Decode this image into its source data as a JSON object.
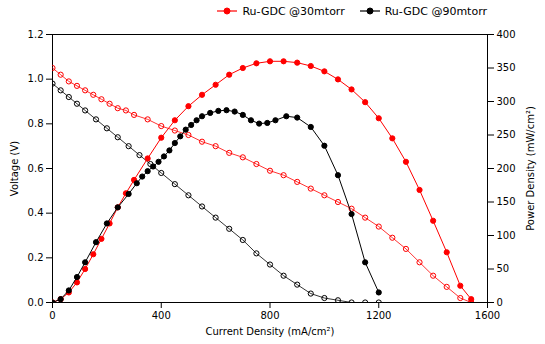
{
  "chart_data": {
    "type": "line",
    "title": "",
    "xlabel": "Current Density (mA/cm²)",
    "ylabel": "Voltage (V)",
    "y2label": "Power Density (mW/cm²)",
    "xlim": [
      0,
      1600
    ],
    "xticks": [
      0,
      400,
      800,
      1200,
      1600
    ],
    "ylim": [
      0,
      1.2
    ],
    "yticks": [
      {
        "value": 0,
        "label": "0.0"
      },
      0.2,
      0.4,
      0.6,
      0.8,
      {
        "value": 1,
        "label": "1.0"
      },
      1.2
    ],
    "y2lim": [
      0,
      400
    ],
    "y2ticks": [
      0,
      50,
      100,
      150,
      200,
      250,
      300,
      350,
      400
    ],
    "grid": false,
    "legend": "upper right",
    "series": [
      {
        "color": "red",
        "marker": "open_circle",
        "axis": "y",
        "x": [
          0,
          30,
          60,
          90,
          120,
          150,
          180,
          210,
          240,
          270,
          300,
          350,
          400,
          450,
          500,
          550,
          600,
          650,
          700,
          750,
          800,
          850,
          900,
          950,
          1000,
          1050,
          1100,
          1150,
          1200,
          1250,
          1300,
          1350,
          1400,
          1450,
          1500,
          1540
        ],
        "values": [
          1.05,
          1.02,
          0.99,
          0.97,
          0.95,
          0.93,
          0.91,
          0.89,
          0.87,
          0.86,
          0.84,
          0.82,
          0.79,
          0.77,
          0.75,
          0.72,
          0.7,
          0.67,
          0.65,
          0.62,
          0.59,
          0.57,
          0.54,
          0.51,
          0.48,
          0.45,
          0.42,
          0.38,
          0.34,
          0.29,
          0.24,
          0.18,
          0.12,
          0.07,
          0.02,
          0.0
        ]
      },
      {
        "color": "black",
        "marker": "open_circle",
        "axis": "y",
        "x": [
          0,
          30,
          60,
          90,
          120,
          160,
          200,
          240,
          280,
          320,
          360,
          400,
          450,
          500,
          550,
          600,
          650,
          700,
          750,
          800,
          850,
          900,
          950,
          1000,
          1050,
          1100,
          1150,
          1200
        ],
        "values": [
          0.98,
          0.95,
          0.92,
          0.89,
          0.86,
          0.82,
          0.78,
          0.74,
          0.7,
          0.66,
          0.62,
          0.58,
          0.53,
          0.48,
          0.43,
          0.38,
          0.33,
          0.28,
          0.22,
          0.17,
          0.12,
          0.08,
          0.04,
          0.02,
          0.01,
          0.0,
          0.0,
          0.0
        ]
      },
      {
        "name": "Ru-GDC @30mtorr",
        "color": "red",
        "marker": "circle",
        "axis": "y2",
        "x": [
          0,
          30,
          60,
          90,
          120,
          150,
          180,
          210,
          240,
          270,
          300,
          350,
          400,
          450,
          500,
          550,
          600,
          650,
          700,
          750,
          800,
          850,
          900,
          950,
          1000,
          1050,
          1100,
          1150,
          1200,
          1250,
          1300,
          1350,
          1400,
          1450,
          1500,
          1540
        ],
        "values": [
          0,
          5,
          15,
          30,
          50,
          72,
          95,
          118,
          142,
          163,
          183,
          215,
          246,
          272,
          293,
          310,
          325,
          340,
          350,
          357,
          360,
          360,
          358,
          353,
          345,
          333,
          318,
          299,
          275,
          245,
          210,
          168,
          122,
          75,
          25,
          5
        ]
      },
      {
        "name": "Ru-GDC @90mtorr",
        "color": "black",
        "marker": "circle",
        "axis": "y2",
        "x": [
          0,
          30,
          60,
          90,
          120,
          160,
          200,
          240,
          280,
          310,
          330,
          350,
          370,
          390,
          410,
          430,
          450,
          470,
          490,
          510,
          530,
          550,
          580,
          610,
          640,
          670,
          700,
          730,
          760,
          790,
          820,
          860,
          900,
          950,
          1000,
          1050,
          1100,
          1150,
          1200
        ],
        "values": [
          0,
          5,
          18,
          38,
          60,
          90,
          118,
          142,
          162,
          178,
          188,
          196,
          203,
          210,
          218,
          227,
          238,
          248,
          258,
          265,
          272,
          278,
          283,
          286,
          287,
          285,
          280,
          272,
          267,
          268,
          272,
          278,
          276,
          262,
          234,
          190,
          132,
          60,
          15
        ]
      }
    ]
  }
}
